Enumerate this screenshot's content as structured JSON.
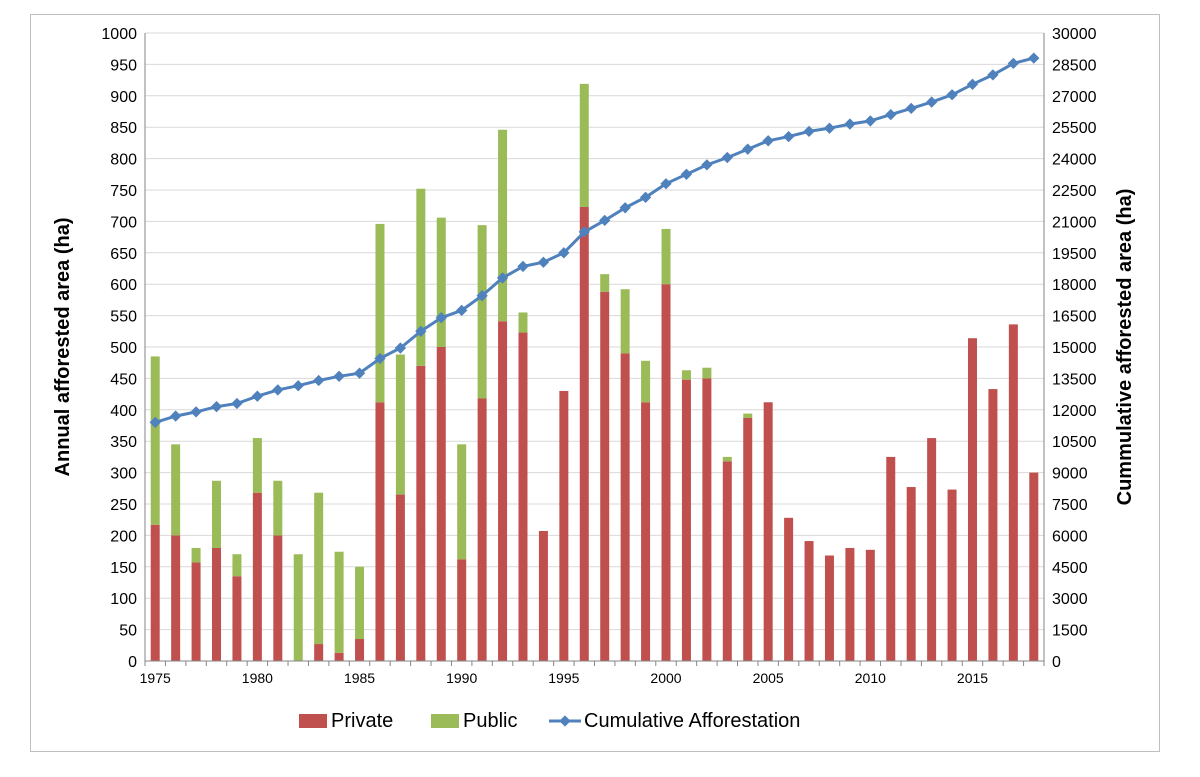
{
  "chart_data": {
    "type": "bar",
    "stacked": true,
    "title": "",
    "xlabel": "",
    "ylabel": "Annual afforested area (ha)",
    "y2label": "Cummulative afforested area (ha)",
    "ylim": [
      0,
      1000
    ],
    "y2lim": [
      0,
      30000
    ],
    "yticks": [
      0,
      50,
      100,
      150,
      200,
      250,
      300,
      350,
      400,
      450,
      500,
      550,
      600,
      650,
      700,
      750,
      800,
      850,
      900,
      950,
      1000
    ],
    "y2ticks": [
      0,
      1500,
      3000,
      4500,
      6000,
      7500,
      9000,
      10500,
      12000,
      13500,
      15000,
      16500,
      18000,
      19500,
      21000,
      22500,
      24000,
      25500,
      27000,
      28500,
      30000
    ],
    "xticks": [
      1975,
      1980,
      1985,
      1990,
      1995,
      2000,
      2005,
      2010,
      2015
    ],
    "grid": true,
    "legend_position": "bottom",
    "x": [
      1975,
      1976,
      1977,
      1978,
      1979,
      1980,
      1981,
      1982,
      1983,
      1984,
      1985,
      1986,
      1987,
      1988,
      1989,
      1990,
      1991,
      1992,
      1993,
      1994,
      1995,
      1996,
      1997,
      1998,
      1999,
      2000,
      2001,
      2002,
      2003,
      2004,
      2005,
      2006,
      2007,
      2008,
      2009,
      2010,
      2011,
      2012,
      2013,
      2014,
      2015,
      2016,
      2017,
      2018
    ],
    "series": [
      {
        "name": "Private",
        "kind": "bar",
        "color": "#c0504d",
        "values": [
          217,
          200,
          157,
          180,
          135,
          268,
          200,
          0,
          27,
          13,
          35,
          412,
          265,
          470,
          500,
          162,
          418,
          541,
          523,
          207,
          430,
          723,
          588,
          490,
          412,
          600,
          448,
          450,
          318,
          387,
          412,
          228,
          191,
          168,
          180,
          177,
          325,
          277,
          355,
          273,
          514,
          433,
          536,
          300
        ]
      },
      {
        "name": "Public",
        "kind": "bar",
        "color": "#9bbb59",
        "values": [
          268,
          145,
          23,
          107,
          35,
          87,
          87,
          170,
          241,
          161,
          115,
          284,
          223,
          282,
          206,
          183,
          276,
          305,
          32,
          0,
          0,
          196,
          28,
          102,
          66,
          88,
          15,
          17,
          7,
          7,
          0,
          0,
          0,
          0,
          0,
          0,
          0,
          0,
          0,
          0,
          0,
          0,
          0,
          0
        ]
      },
      {
        "name": "Cumulative Afforestation",
        "kind": "line",
        "axis": "right",
        "color": "#4f81bd",
        "values": [
          11400,
          11700,
          11900,
          12150,
          12300,
          12650,
          12950,
          13150,
          13400,
          13600,
          13750,
          14450,
          14950,
          15750,
          16400,
          16750,
          17450,
          18300,
          18850,
          19050,
          19500,
          20500,
          21050,
          21650,
          22150,
          22800,
          23250,
          23700,
          24050,
          24450,
          24850,
          25050,
          25300,
          25450,
          25650,
          25800,
          26100,
          26400,
          26700,
          27050,
          27550,
          28000,
          28550,
          28800
        ]
      }
    ]
  }
}
